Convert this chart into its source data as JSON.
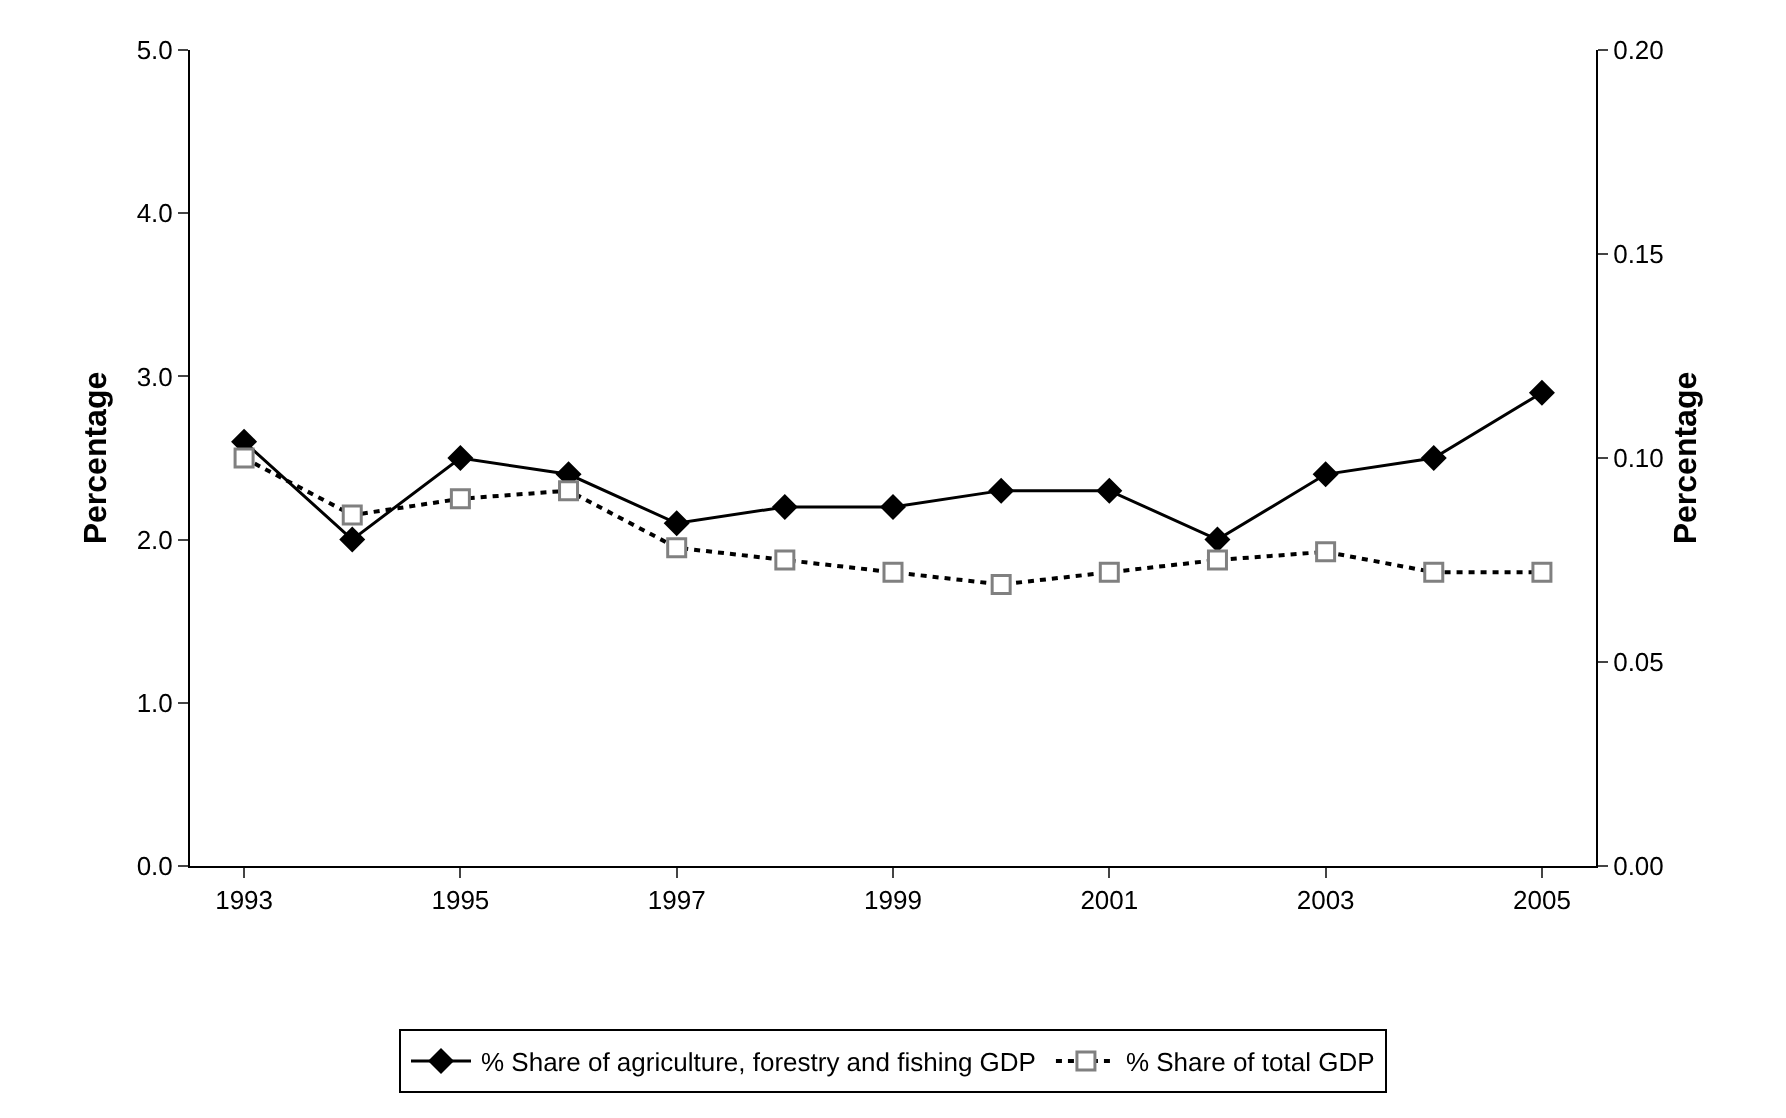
{
  "chart_data": {
    "type": "line",
    "categories": [
      "1993",
      null,
      "1995",
      null,
      "1997",
      null,
      "1999",
      null,
      "2001",
      null,
      "2003",
      null,
      "2005"
    ],
    "series": [
      {
        "name": "% Share of agriculture, forestry and fishing GDP",
        "color": "#000000",
        "marker": "diamond",
        "line_style": "solid",
        "values": [
          2.6,
          2.0,
          2.5,
          2.4,
          2.1,
          2.2,
          2.2,
          2.3,
          2.3,
          2.0,
          2.4,
          2.5,
          2.9
        ]
      },
      {
        "name": "% Share of total GDP",
        "color": "#000000",
        "marker": "square",
        "line_style": "dotted",
        "axis": "y2",
        "values": [
          0.1,
          0.086,
          0.09,
          0.092,
          0.078,
          0.075,
          0.072,
          0.069,
          0.072,
          0.075,
          0.077,
          0.072,
          0.072
        ]
      }
    ],
    "ylabel": "Percentage",
    "y2label": "Percentage",
    "ylim": [
      0,
      5
    ],
    "yticks": [
      {
        "value": 0,
        "label": "0.0"
      },
      {
        "value": 1,
        "label": "1.0"
      },
      {
        "value": 2,
        "label": "2.0"
      },
      {
        "value": 3,
        "label": "3.0"
      },
      {
        "value": 4,
        "label": "4.0"
      },
      {
        "value": 5,
        "label": "5.0"
      }
    ],
    "y2lim": [
      0,
      0.2
    ],
    "y2ticks": [
      {
        "value": 0,
        "label": "0.00"
      },
      {
        "value": 0.05,
        "label": "0.05"
      },
      {
        "value": 0.1,
        "label": "0.10"
      },
      {
        "value": 0.15,
        "label": "0.15"
      },
      {
        "value": 0.2,
        "label": "0.20"
      }
    ],
    "grid": false,
    "legend": "bottom"
  }
}
